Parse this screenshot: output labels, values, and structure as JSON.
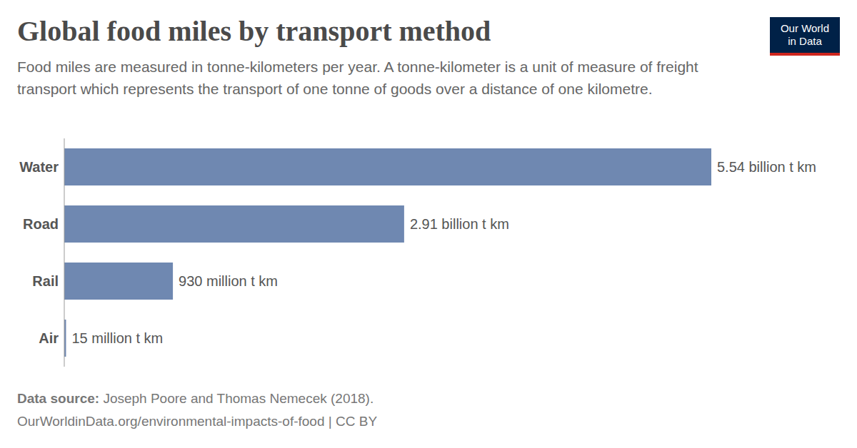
{
  "chart_data": {
    "type": "bar",
    "title": "Global food miles by transport method",
    "subtitle": "Food miles are measured in tonne-kilometers per year. A tonne-kilometer is a unit of measure of freight transport which represents the transport of one tonne of goods over a distance of one kilometre.",
    "categories": [
      "Water",
      "Road",
      "Rail",
      "Air"
    ],
    "values": [
      5540000000,
      2910000000,
      930000000,
      15000000
    ],
    "value_labels": [
      "5.54 billion t km",
      "2.91 billion t km",
      "930 million t km",
      "15 million t km"
    ],
    "color": "#6f88b1",
    "orientation": "horizontal",
    "data_labels": true,
    "tick_labels": "y",
    "grid": false,
    "xlim": [
      0,
      5540000000
    ],
    "source_label": "Data source:",
    "source": "Joseph Poore and Thomas Nemecek (2018).",
    "url": "OurWorldinData.org/environmental-impacts-of-food | CC BY",
    "logo": "Our World in Data"
  }
}
